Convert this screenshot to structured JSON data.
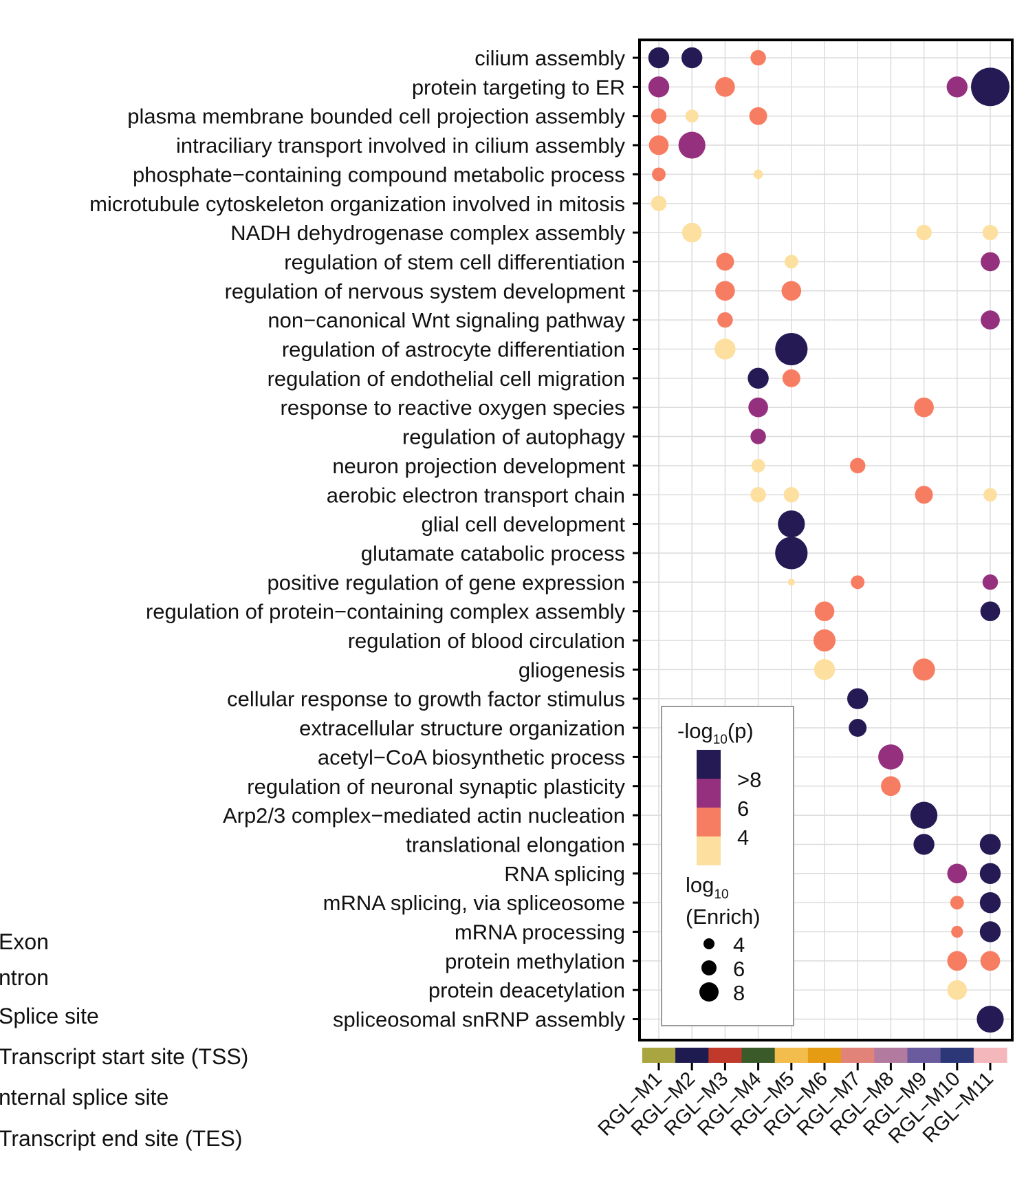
{
  "chart_data": {
    "type": "dot",
    "title": "",
    "categories_x": [
      "RGL−M1",
      "RGL−M2",
      "RGL−M3",
      "RGL−M4",
      "RGL−M5",
      "RGL−M6",
      "RGL−M7",
      "RGL−M8",
      "RGL−M9",
      "RGL−M10",
      "RGL−M11"
    ],
    "module_colors": [
      "#a9a540",
      "#1d1b50",
      "#c0392b",
      "#3a5a2a",
      "#f2bd4c",
      "#e59b12",
      "#e2837a",
      "#b37a9f",
      "#6a5a9e",
      "#2c3778",
      "#f3b7bc"
    ],
    "terms": [
      "cilium assembly",
      "protein targeting to ER",
      "plasma membrane bounded cell projection assembly",
      "intraciliary transport involved in cilium assembly",
      "phosphate−containing compound metabolic process",
      "microtubule cytoskeleton organization involved in mitosis",
      "NADH dehydrogenase complex assembly",
      "regulation of stem cell differentiation",
      "regulation of nervous system development",
      "non−canonical Wnt signaling pathway",
      "regulation of astrocyte differentiation",
      "regulation of endothelial cell migration",
      "response to reactive oxygen species",
      "regulation of autophagy",
      "neuron projection development",
      "aerobic electron transport chain",
      "glial cell development",
      "glutamate catabolic process",
      "positive regulation of gene expression",
      "regulation of protein−containing complex assembly",
      "regulation of blood circulation",
      "gliogenesis",
      "cellular response to growth factor stimulus",
      "extracellular structure organization",
      "acetyl−CoA biosynthetic process",
      "regulation of neuronal synaptic plasticity",
      "Arp2/3 complex−mediated actin nucleation",
      "translational elongation",
      "RNA splicing",
      "mRNA splicing, via spliceosome",
      "mRNA processing",
      "protein methylation",
      "protein deacetylation",
      "spliceosomal snRNP assembly"
    ],
    "points": [
      {
        "term": 0,
        "module": 0,
        "neglog10p": 9,
        "log10_enrich": 5.5
      },
      {
        "term": 0,
        "module": 1,
        "neglog10p": 9,
        "log10_enrich": 5.5
      },
      {
        "term": 0,
        "module": 3,
        "neglog10p": 5,
        "log10_enrich": 4.6
      },
      {
        "term": 1,
        "module": 0,
        "neglog10p": 7,
        "log10_enrich": 5.5
      },
      {
        "term": 1,
        "module": 2,
        "neglog10p": 5,
        "log10_enrich": 5.3
      },
      {
        "term": 1,
        "module": 9,
        "neglog10p": 7,
        "log10_enrich": 5.5
      },
      {
        "term": 1,
        "module": 10,
        "neglog10p": 9,
        "log10_enrich": 8.4
      },
      {
        "term": 2,
        "module": 0,
        "neglog10p": 5,
        "log10_enrich": 4.6
      },
      {
        "term": 2,
        "module": 1,
        "neglog10p": 4,
        "log10_enrich": 4.2
      },
      {
        "term": 2,
        "module": 3,
        "neglog10p": 5,
        "log10_enrich": 5.0
      },
      {
        "term": 3,
        "module": 0,
        "neglog10p": 5,
        "log10_enrich": 5.3
      },
      {
        "term": 3,
        "module": 1,
        "neglog10p": 7,
        "log10_enrich": 6.5
      },
      {
        "term": 4,
        "module": 0,
        "neglog10p": 5,
        "log10_enrich": 4.3
      },
      {
        "term": 4,
        "module": 3,
        "neglog10p": 4,
        "log10_enrich": 3.6
      },
      {
        "term": 5,
        "module": 0,
        "neglog10p": 4,
        "log10_enrich": 4.6
      },
      {
        "term": 6,
        "module": 1,
        "neglog10p": 4,
        "log10_enrich": 5.3
      },
      {
        "term": 6,
        "module": 8,
        "neglog10p": 4,
        "log10_enrich": 4.6
      },
      {
        "term": 6,
        "module": 10,
        "neglog10p": 4,
        "log10_enrich": 4.6
      },
      {
        "term": 7,
        "module": 2,
        "neglog10p": 5,
        "log10_enrich": 5.0
      },
      {
        "term": 7,
        "module": 4,
        "neglog10p": 4,
        "log10_enrich": 4.3
      },
      {
        "term": 7,
        "module": 10,
        "neglog10p": 7,
        "log10_enrich": 5.2
      },
      {
        "term": 8,
        "module": 2,
        "neglog10p": 5,
        "log10_enrich": 5.3
      },
      {
        "term": 8,
        "module": 4,
        "neglog10p": 5,
        "log10_enrich": 5.3
      },
      {
        "term": 9,
        "module": 2,
        "neglog10p": 5,
        "log10_enrich": 4.6
      },
      {
        "term": 9,
        "module": 10,
        "neglog10p": 7,
        "log10_enrich": 5.2
      },
      {
        "term": 10,
        "module": 2,
        "neglog10p": 4,
        "log10_enrich": 5.5
      },
      {
        "term": 10,
        "module": 4,
        "neglog10p": 9,
        "log10_enrich": 7.4
      },
      {
        "term": 11,
        "module": 3,
        "neglog10p": 9,
        "log10_enrich": 5.5
      },
      {
        "term": 11,
        "module": 4,
        "neglog10p": 5,
        "log10_enrich": 5.0
      },
      {
        "term": 12,
        "module": 3,
        "neglog10p": 7,
        "log10_enrich": 5.3
      },
      {
        "term": 12,
        "module": 8,
        "neglog10p": 5,
        "log10_enrich": 5.3
      },
      {
        "term": 13,
        "module": 3,
        "neglog10p": 7,
        "log10_enrich": 4.6
      },
      {
        "term": 14,
        "module": 3,
        "neglog10p": 4,
        "log10_enrich": 4.3
      },
      {
        "term": 14,
        "module": 6,
        "neglog10p": 5,
        "log10_enrich": 4.6
      },
      {
        "term": 15,
        "module": 3,
        "neglog10p": 4,
        "log10_enrich": 4.6
      },
      {
        "term": 15,
        "module": 4,
        "neglog10p": 4,
        "log10_enrich": 4.6
      },
      {
        "term": 15,
        "module": 8,
        "neglog10p": 5,
        "log10_enrich": 5.0
      },
      {
        "term": 15,
        "module": 10,
        "neglog10p": 4,
        "log10_enrich": 4.3
      },
      {
        "term": 16,
        "module": 4,
        "neglog10p": 9,
        "log10_enrich": 6.5
      },
      {
        "term": 17,
        "module": 4,
        "neglog10p": 9,
        "log10_enrich": 7.4
      },
      {
        "term": 18,
        "module": 4,
        "neglog10p": 4,
        "log10_enrich": 3.2
      },
      {
        "term": 18,
        "module": 6,
        "neglog10p": 5,
        "log10_enrich": 4.3
      },
      {
        "term": 18,
        "module": 10,
        "neglog10p": 7,
        "log10_enrich": 4.6
      },
      {
        "term": 19,
        "module": 5,
        "neglog10p": 5,
        "log10_enrich": 5.3
      },
      {
        "term": 19,
        "module": 10,
        "neglog10p": 9,
        "log10_enrich": 5.3
      },
      {
        "term": 20,
        "module": 5,
        "neglog10p": 5,
        "log10_enrich": 5.7
      },
      {
        "term": 21,
        "module": 5,
        "neglog10p": 4,
        "log10_enrich": 5.5
      },
      {
        "term": 21,
        "module": 8,
        "neglog10p": 5,
        "log10_enrich": 5.7
      },
      {
        "term": 22,
        "module": 6,
        "neglog10p": 9,
        "log10_enrich": 5.5
      },
      {
        "term": 23,
        "module": 6,
        "neglog10p": 9,
        "log10_enrich": 5.0
      },
      {
        "term": 24,
        "module": 7,
        "neglog10p": 7,
        "log10_enrich": 6.2
      },
      {
        "term": 25,
        "module": 7,
        "neglog10p": 5,
        "log10_enrich": 5.3
      },
      {
        "term": 26,
        "module": 8,
        "neglog10p": 9,
        "log10_enrich": 6.5
      },
      {
        "term": 27,
        "module": 8,
        "neglog10p": 9,
        "log10_enrich": 5.5
      },
      {
        "term": 27,
        "module": 10,
        "neglog10p": 9,
        "log10_enrich": 5.5
      },
      {
        "term": 28,
        "module": 9,
        "neglog10p": 7,
        "log10_enrich": 5.3
      },
      {
        "term": 28,
        "module": 10,
        "neglog10p": 9,
        "log10_enrich": 5.5
      },
      {
        "term": 29,
        "module": 9,
        "neglog10p": 5,
        "log10_enrich": 4.3
      },
      {
        "term": 29,
        "module": 10,
        "neglog10p": 9,
        "log10_enrich": 5.5
      },
      {
        "term": 30,
        "module": 9,
        "neglog10p": 5,
        "log10_enrich": 4.0
      },
      {
        "term": 30,
        "module": 10,
        "neglog10p": 9,
        "log10_enrich": 5.5
      },
      {
        "term": 31,
        "module": 9,
        "neglog10p": 5,
        "log10_enrich": 5.3
      },
      {
        "term": 31,
        "module": 10,
        "neglog10p": 5,
        "log10_enrich": 5.3
      },
      {
        "term": 32,
        "module": 9,
        "neglog10p": 4,
        "log10_enrich": 5.3
      },
      {
        "term": 33,
        "module": 10,
        "neglog10p": 9,
        "log10_enrich": 6.5
      }
    ],
    "color_scale": {
      "title_base": "-log",
      "title_sub": "10",
      "title_arg": "(p)",
      "breaks": [
        ">8",
        "6",
        "4"
      ],
      "colors": {
        "ge8": "#261a54",
        "6to8": "#95307f",
        "5to6": "#f77d62",
        "lt5": "#fde09f"
      }
    },
    "size_scale": {
      "title_line1_base": "log",
      "title_line1_sub": "10",
      "title_line2": "(Enrich)",
      "breaks": [
        4,
        6,
        8
      ]
    },
    "grid": true
  },
  "side_labels": [
    "Exon",
    "ntron",
    "Splice site",
    "Transcript start site (TSS)",
    "nternal splice site",
    "Transcript end site (TES)"
  ]
}
